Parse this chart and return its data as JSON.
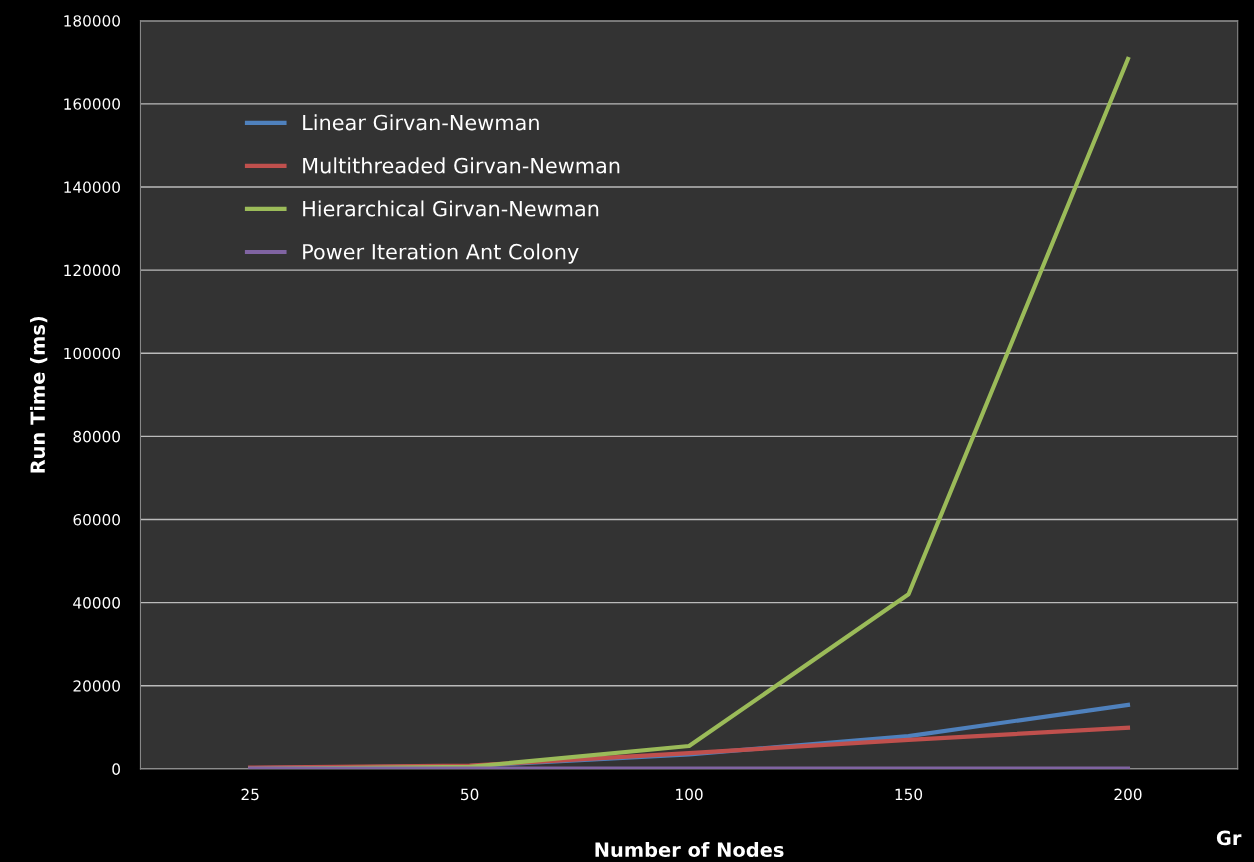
{
  "chart_data": {
    "type": "line",
    "xlabel": "Number of Nodes",
    "ylabel": "Run Time (ms)",
    "categories": [
      "25",
      "50",
      "100",
      "150",
      "200"
    ],
    "series": [
      {
        "name": "Linear Girvan-Newman",
        "color": "#4f81bd",
        "values": [
          200,
          700,
          3500,
          7900,
          15400
        ]
      },
      {
        "name": "Multithreaded Girvan-Newman",
        "color": "#c0504d",
        "values": [
          300,
          800,
          3800,
          7000,
          9900
        ]
      },
      {
        "name": "Hierarchical Girvan-Newman",
        "color": "#9bbb59",
        "values": [
          0,
          500,
          5500,
          42000,
          170800
        ]
      },
      {
        "name": "Power Iteration Ant Colony",
        "color": "#8064a2",
        "values": [
          50,
          50,
          100,
          100,
          100
        ]
      }
    ],
    "ylim": [
      0,
      180000
    ],
    "yticks": [
      0,
      20000,
      40000,
      60000,
      80000,
      100000,
      120000,
      140000,
      160000,
      180000
    ],
    "grid": "y",
    "legend": "top left",
    "marker": "none",
    "line_style": "solid",
    "annotations": [
      "Gr"
    ]
  }
}
